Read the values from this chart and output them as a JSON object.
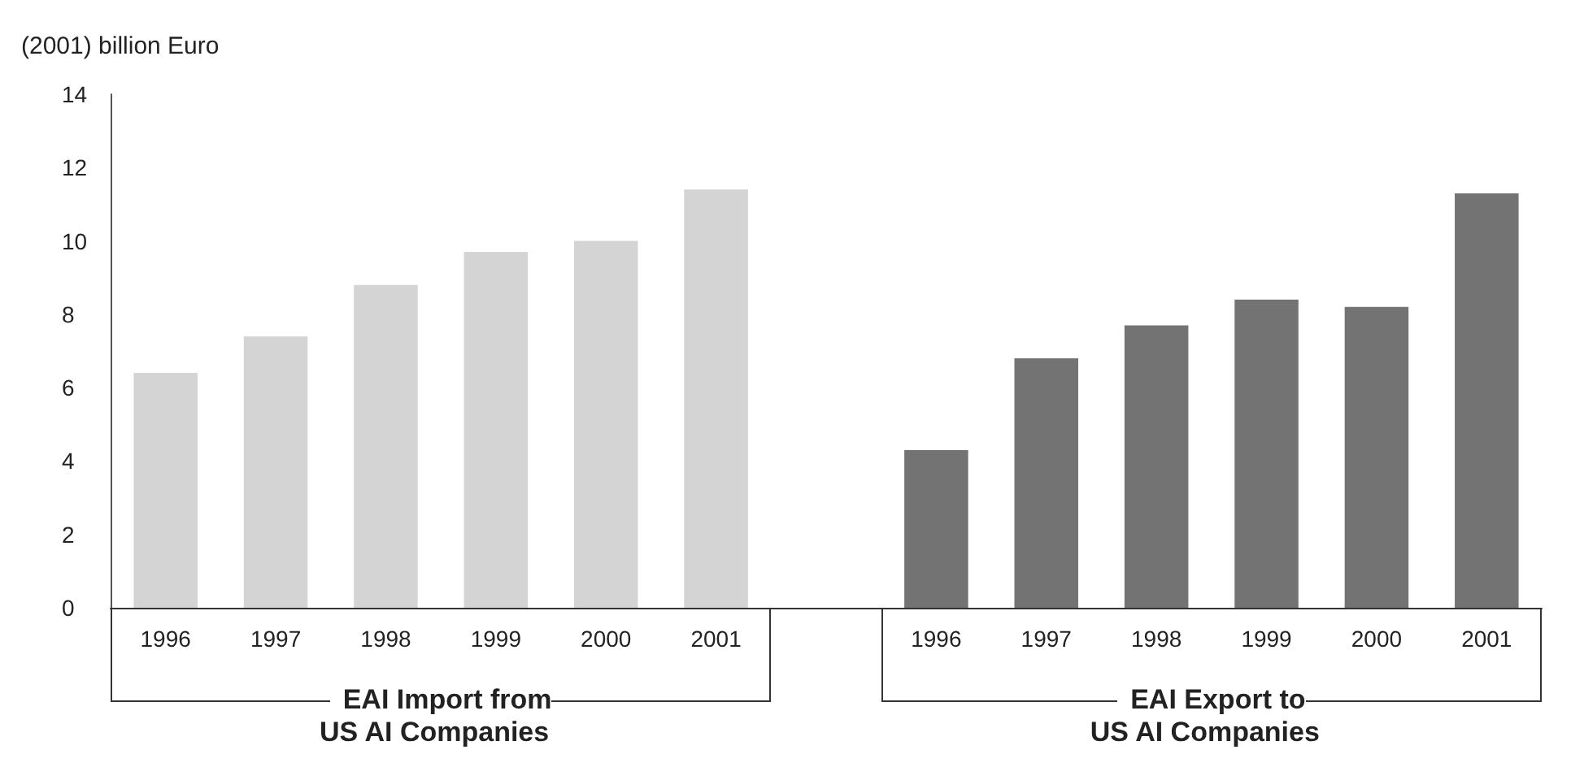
{
  "chart_data": {
    "type": "bar",
    "ylabel": "(2001) billion Euro",
    "categories": [
      "1996",
      "1997",
      "1998",
      "1999",
      "2000",
      "2001",
      null,
      "1996",
      "1997",
      "1998",
      "1999",
      "2000",
      "2001"
    ],
    "series": [
      {
        "color": "#d4d4d4",
        "values": [
          6.4,
          7.4,
          8.8,
          9.7,
          10.0,
          11.4,
          null,
          null,
          null,
          null,
          null,
          null,
          null
        ]
      },
      {
        "color": "#737373",
        "values": [
          null,
          null,
          null,
          null,
          null,
          null,
          null,
          4.3,
          6.8,
          7.7,
          8.4,
          8.2,
          11.3
        ]
      }
    ],
    "ylim": [
      0,
      14
    ],
    "yticks": [
      0,
      2,
      4,
      6,
      8,
      10,
      12,
      14
    ],
    "grid": false,
    "annotations": [
      "EAI Import from\nUS AI Companies",
      "EAI Export to\nUS AI Companies"
    ]
  }
}
